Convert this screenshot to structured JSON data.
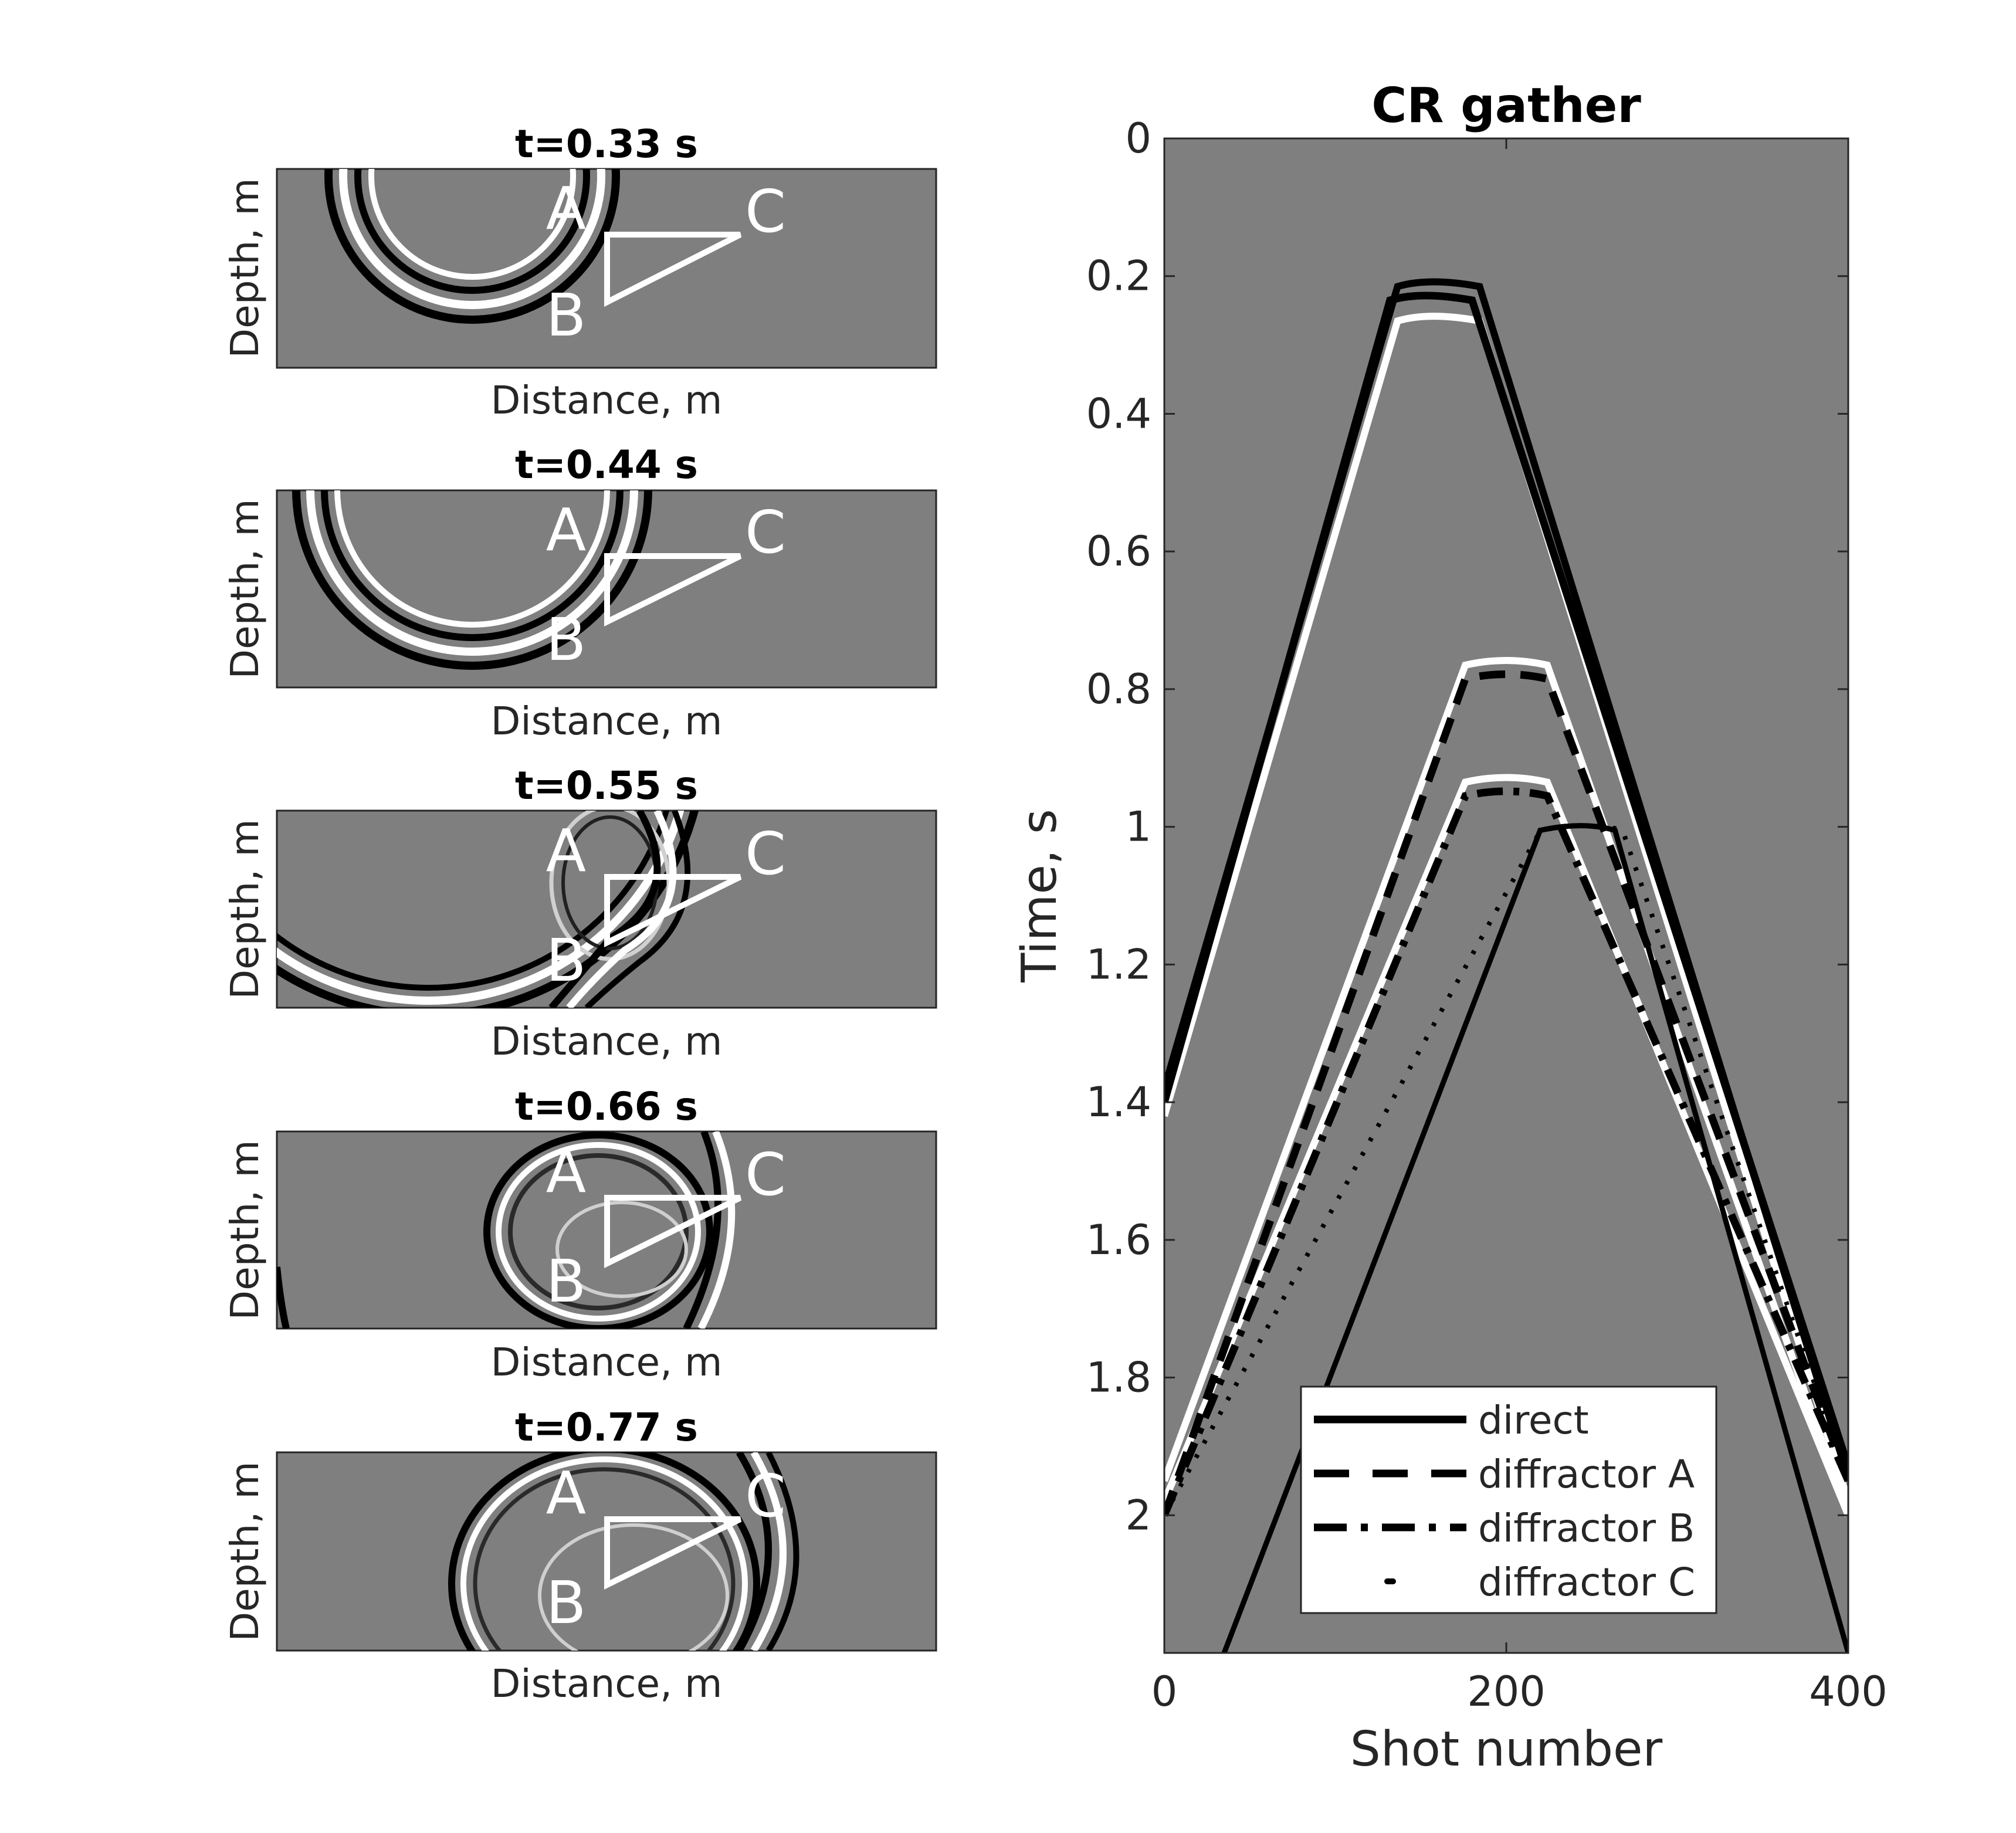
{
  "chart_data": [
    {
      "type": "heatmap",
      "title": "t=0.33 s",
      "xlabel": "Distance, m",
      "ylabel": "Depth, m",
      "point_labels": [
        "A",
        "B",
        "C"
      ]
    },
    {
      "type": "heatmap",
      "title": "t=0.44 s",
      "xlabel": "Distance, m",
      "ylabel": "Depth, m",
      "point_labels": [
        "A",
        "B",
        "C"
      ]
    },
    {
      "type": "heatmap",
      "title": "t=0.55 s",
      "xlabel": "Distance, m",
      "ylabel": "Depth, m",
      "point_labels": [
        "A",
        "B",
        "C"
      ]
    },
    {
      "type": "heatmap",
      "title": "t=0.66 s",
      "xlabel": "Distance, m",
      "ylabel": "Depth, m",
      "point_labels": [
        "A",
        "B",
        "C"
      ]
    },
    {
      "type": "heatmap",
      "title": "t=0.77 s",
      "xlabel": "Distance, m",
      "ylabel": "Depth, m",
      "point_labels": [
        "A",
        "B",
        "C"
      ]
    },
    {
      "type": "line",
      "title": "CR gather",
      "xlabel": "Shot number",
      "ylabel": "Time, s",
      "xlim": [
        0,
        400
      ],
      "ylim": [
        0,
        2.2
      ],
      "y_reversed": true,
      "xticks": [
        0,
        200,
        400
      ],
      "yticks": [
        0,
        0.2,
        0.4,
        0.6,
        0.8,
        1,
        1.2,
        1.4,
        1.6,
        1.8,
        2
      ],
      "ytick_labels": [
        "0",
        "0.2",
        "0.4",
        "0.6",
        "0.8",
        "1",
        "1.2",
        "1.4",
        "1.6",
        "1.8",
        "2"
      ],
      "legend_position": "bottom-right",
      "series": [
        {
          "name": "direct",
          "style": "solid",
          "x": [
            0,
            150,
            400
          ],
          "y": [
            1.4,
            0.23,
            1.93
          ]
        },
        {
          "name": "diffractor A",
          "style": "dashed",
          "x": [
            0,
            200,
            400
          ],
          "y": [
            2.0,
            0.78,
            1.95
          ]
        },
        {
          "name": "diffractor B",
          "style": "dash-dot",
          "x": [
            0,
            200,
            400
          ],
          "y": [
            2.0,
            0.95,
            1.95
          ]
        },
        {
          "name": "diffractor C",
          "style": "dotted",
          "x": [
            0,
            250,
            400
          ],
          "y": [
            2.0,
            1.0,
            1.95
          ]
        }
      ],
      "background_events": [
        {
          "x": [
            0,
            155,
            400
          ],
          "y": [
            1.38,
            0.21,
            1.95
          ]
        },
        {
          "x": [
            0,
            155,
            400
          ],
          "y": [
            1.42,
            0.26,
            1.98
          ]
        },
        {
          "x": [
            0,
            200,
            400
          ],
          "y": [
            1.95,
            0.76,
            2.0
          ]
        },
        {
          "x": [
            0,
            200,
            400
          ],
          "y": [
            1.98,
            0.93,
            2.0
          ]
        },
        {
          "x": [
            35,
            245,
            400
          ],
          "y": [
            2.2,
            1.0,
            2.2
          ]
        }
      ]
    }
  ]
}
